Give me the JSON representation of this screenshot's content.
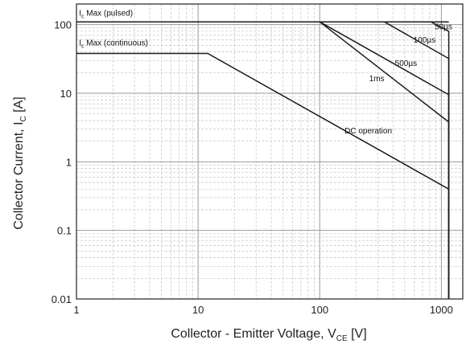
{
  "chart_data": {
    "type": "line",
    "xscale": "log",
    "yscale": "log",
    "xlim": [
      1,
      1500
    ],
    "ylim": [
      0.01,
      200
    ],
    "grid": true,
    "x_ticks": [
      {
        "value": 1,
        "label": "1"
      },
      {
        "value": 10,
        "label": "10"
      },
      {
        "value": 100,
        "label": "100"
      },
      {
        "value": 1000,
        "label": "1000"
      }
    ],
    "y_ticks": [
      {
        "value": 0.01,
        "label": "0.01"
      },
      {
        "value": 0.1,
        "label": "0.1"
      },
      {
        "value": 1,
        "label": "1"
      },
      {
        "value": 10,
        "label": "10"
      },
      {
        "value": 100,
        "label": "100"
      }
    ],
    "xlabel": {
      "main": "Collector - Emitter Voltage, V",
      "sub": "CE",
      "unit": " [V]"
    },
    "ylabel": {
      "main": "Collector Current, I",
      "sub": "C",
      "unit": " [A]"
    },
    "series": [
      {
        "name": "DC operation",
        "x": [
          1,
          12,
          1150,
          1150
        ],
        "y": [
          38,
          38,
          0.4,
          0.01
        ]
      },
      {
        "name": "1ms",
        "x": [
          1,
          100,
          1150,
          1150
        ],
        "y": [
          110,
          110,
          3.8,
          0.01
        ]
      },
      {
        "name": "500µs",
        "x": [
          100,
          1150,
          1150
        ],
        "y": [
          110,
          9.5,
          0.01
        ]
      },
      {
        "name": "100µs",
        "x": [
          340,
          1150,
          1150
        ],
        "y": [
          110,
          32,
          0.01
        ]
      },
      {
        "name": "50µs",
        "x": [
          820,
          1150,
          1150
        ],
        "y": [
          110,
          80,
          0.01
        ]
      },
      {
        "name": "Ic Max (pulsed)",
        "x": [
          1,
          1150
        ],
        "y": [
          110,
          110
        ]
      }
    ],
    "annotations": [
      {
        "label_prefix": "I",
        "label_sub": "c",
        "label_rest": " Max (pulsed)",
        "x": 1.05,
        "y": 135
      },
      {
        "label_prefix": "I",
        "label_sub": "c",
        "label_rest": " Max (continuous)",
        "x": 1.05,
        "y": 50
      },
      {
        "text": "50µs",
        "x": 880,
        "y": 85
      },
      {
        "text": "100µs",
        "x": 590,
        "y": 55
      },
      {
        "text": "500µs",
        "x": 415,
        "y": 25
      },
      {
        "text": "1ms",
        "x": 255,
        "y": 15
      },
      {
        "text": "DC operation",
        "x": 160,
        "y": 2.6
      }
    ]
  }
}
